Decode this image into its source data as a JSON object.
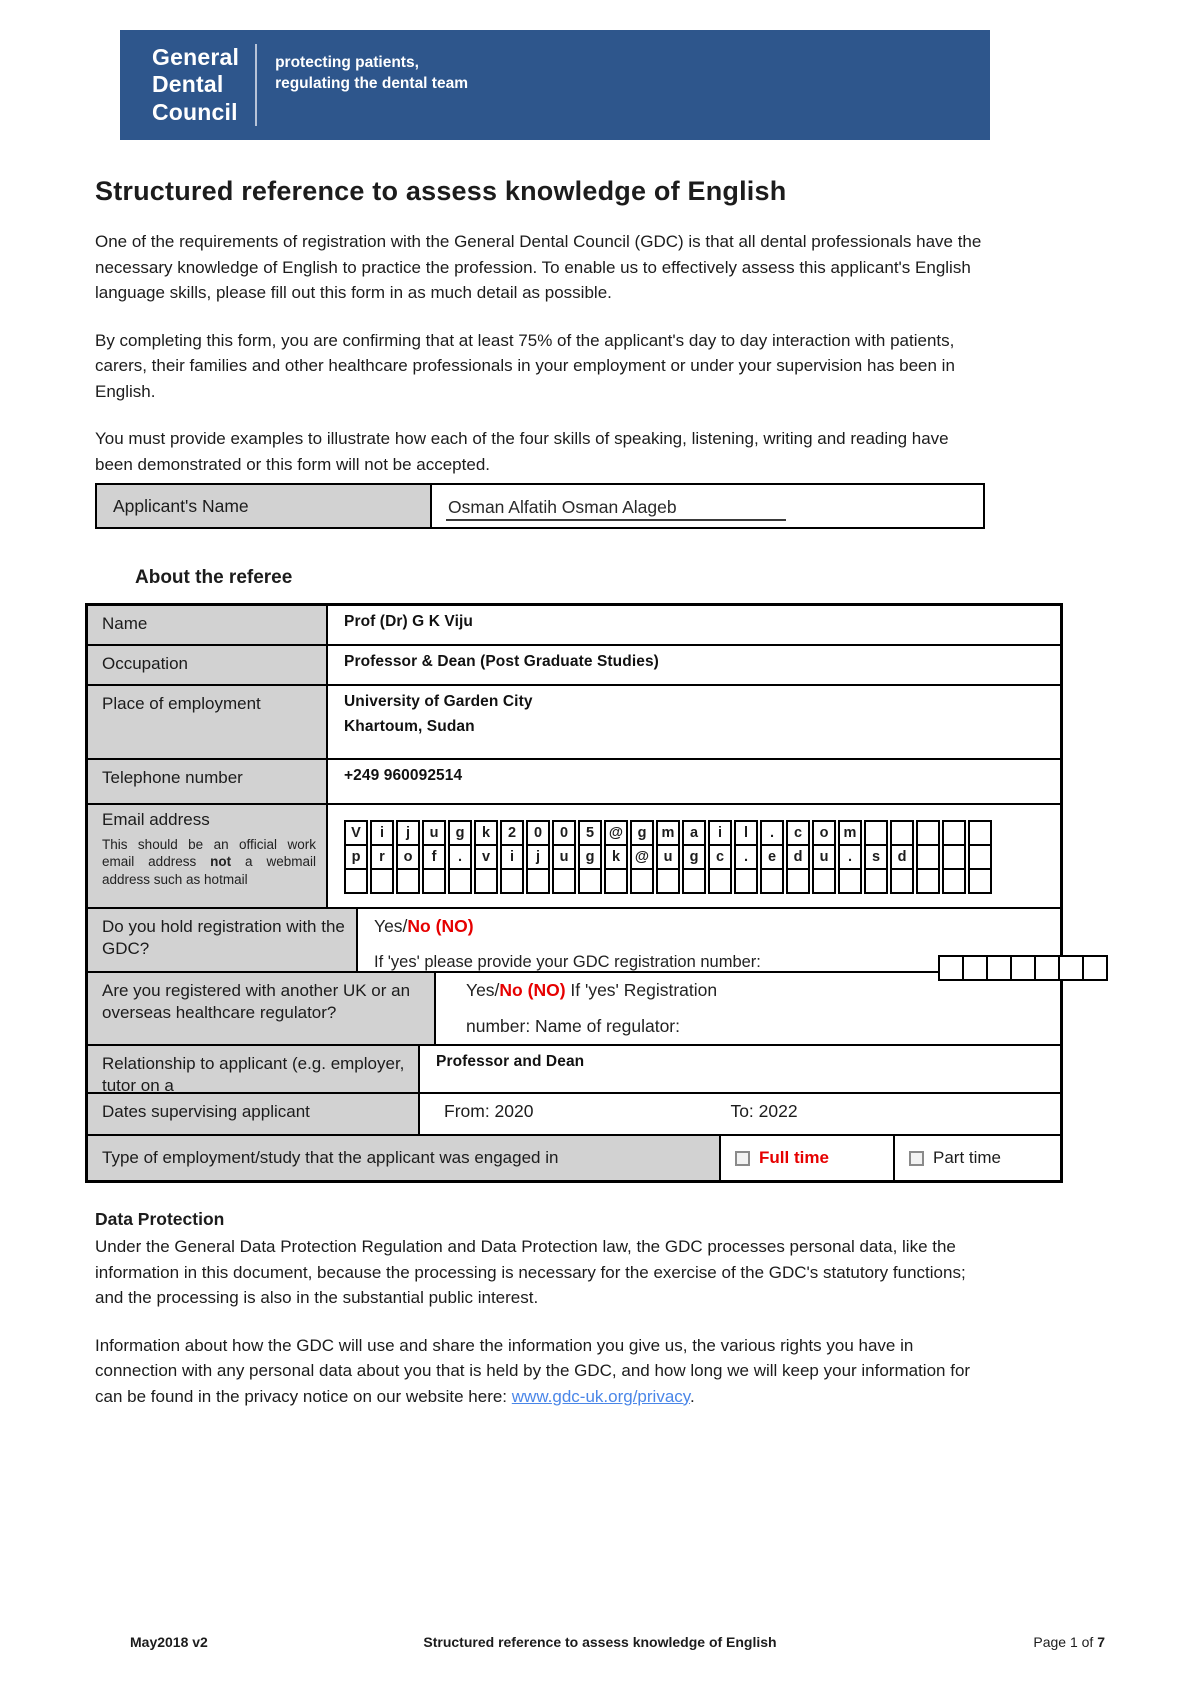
{
  "colors": {
    "banner_bg": "#2e568c",
    "label_gray": "#d2d2d2",
    "alert_red": "#e60000",
    "link_blue": "#4a86e8"
  },
  "header": {
    "logo_text": "General\nDental\nCouncil",
    "tagline": "protecting patients,\nregulating the dental team"
  },
  "title": "Structured reference to assess knowledge of English",
  "intro": {
    "p1": "One of the requirements of registration with the General Dental Council (GDC) is that all dental professionals have the necessary knowledge of English to practice the profession. To enable us to effectively assess this applicant's English language skills, please fill out this form in as much detail as possible.",
    "p2": "By completing this form, you are confirming that at least 75% of the applicant's day to day interaction with patients, carers, their families and other healthcare professionals in your employment or under your supervision has been in English.",
    "p3": "You must provide examples to illustrate how each of the four skills of speaking, listening, writing and reading have been demonstrated or this form will not be accepted."
  },
  "applicant": {
    "label": "Applicant's Name",
    "value": "Osman Alfatih Osman Alageb"
  },
  "referee_section": {
    "heading": "About the referee",
    "rows": {
      "name": {
        "label": "Name",
        "value": "Prof (Dr) G K Viju"
      },
      "occupation": {
        "label": "Occupation",
        "value": "Professor & Dean (Post Graduate Studies)"
      },
      "employment": {
        "label": "Place of employment",
        "value_line1": "University of Garden City",
        "value_line2": "Khartoum, Sudan"
      },
      "telephone": {
        "label": "Telephone number",
        "value": "+249 960092514"
      },
      "email": {
        "label": "Email address",
        "note_pre": "This should be an official work email address ",
        "note_bold": "not",
        "note_post": " a webmail address such as hotmail",
        "line1": "Vijugk2005@gmail.com",
        "line2": "prof.vijugk@ugc.edu.sd",
        "columns": 25,
        "empty_rows": 1
      },
      "gdc_registration": {
        "label": "Do you hold registration with the GDC?",
        "yes_part": "Yes/",
        "no_part": "No (NO)",
        "followup": "If 'yes' please provide your GDC registration number:",
        "boxes": 7
      },
      "other_regulator": {
        "label": "Are you registered with another UK or an overseas healthcare regulator?",
        "yes_part": "Yes/",
        "no_part": "No (NO)",
        "line1_rest": "  If 'yes' Registration",
        "line2": "number:  Name of regulator:"
      },
      "relationship": {
        "label": "Relationship to applicant (e.g. employer, tutor on a",
        "value": "Professor and Dean"
      },
      "dates": {
        "label": "Dates supervising applicant",
        "from": "From: 2020",
        "to": "To: 2022"
      },
      "employment_type": {
        "label": "Type of employment/study that the applicant was engaged in",
        "full_time": "Full time",
        "part_time": "Part time"
      }
    }
  },
  "data_protection": {
    "heading": "Data Protection",
    "p1": "Under the General Data Protection Regulation and Data Protection law, the GDC processes personal data, like the information in this document, because the processing is necessary for the exercise of the GDC's statutory functions; and the processing is also in the substantial public interest.",
    "p2_pre": "Information about how the GDC will use and share the information you give us, the various rights you have in connection with any personal data about you that is held by the GDC, and how long we will keep your information for can be found in the privacy notice on our website here: ",
    "link_text": "www.gdc-uk.org/privacy",
    "p2_post": "."
  },
  "footer": {
    "left": "May2018 v2",
    "center": "Structured reference to assess knowledge of English",
    "page_label": "Page 1 of ",
    "page_total": "7"
  }
}
